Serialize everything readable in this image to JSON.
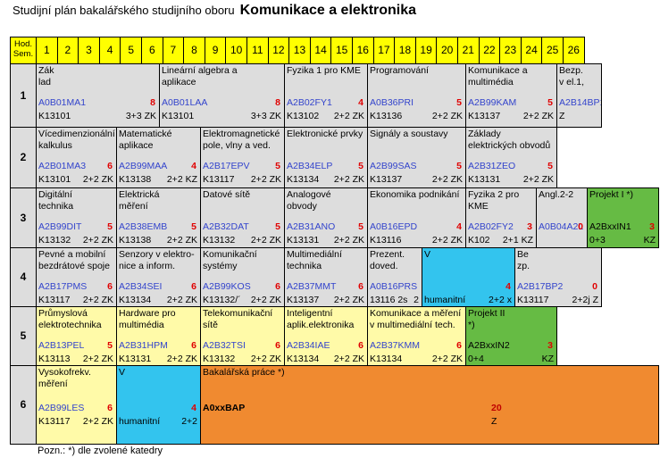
{
  "title": {
    "prefix": "Studijní plán bakalářského studijního oboru",
    "main": "Komunikace a elektronika"
  },
  "header": {
    "sem_label": "Hod.\nSem.",
    "columns": [
      "1",
      "2",
      "3",
      "4",
      "5",
      "6",
      "7",
      "8",
      "9",
      "10",
      "11",
      "12",
      "13",
      "14",
      "15",
      "16",
      "17",
      "18",
      "19",
      "20",
      "21",
      "22",
      "23",
      "24",
      "25",
      "26"
    ]
  },
  "semesters": [
    "1",
    "2",
    "3",
    "4",
    "5",
    "6"
  ],
  "courses": [
    {
      "name": "Zák\nlad",
      "code": "A0B01MA1",
      "credits": "8",
      "dept": "K13101",
      "hours": "3+3 ZK"
    },
    {
      "name": "Lineární algebra a\naplikace",
      "code": "A0B01LAA",
      "credits": "8",
      "dept": "K13101",
      "hours": "3+3 ZK"
    },
    {
      "name": "Fyzika 1 pro KME",
      "code": "A2B02FY1",
      "credits": "4",
      "dept": "K13102",
      "hours": "2+2 ZK"
    },
    {
      "name": "Programování",
      "code": "A0B36PRI",
      "credits": "5",
      "dept": "K13136",
      "hours": "2+2 ZK"
    },
    {
      "name": "Komunikace a\nmultimédia",
      "code": "A2B99KAM",
      "credits": "5",
      "dept": "K13137",
      "hours": "2+2 ZK"
    },
    {
      "name": "Bezp.\nv el.1,",
      "code": "A2B14BP1",
      "credits": "",
      "dept": "Z",
      "hours": ""
    },
    {
      "name": "Vícedimenzionální\nkalkulus",
      "code": "A2B01MA3",
      "credits": "6",
      "dept": "K13101",
      "hours": "2+2 ZK"
    },
    {
      "name": "Matematické\naplikace",
      "code": "A2B99MAA",
      "credits": "4",
      "dept": "K13138",
      "hours": "2+2 KZ"
    },
    {
      "name": "Elektromagnetické\npole, vlny a ved.",
      "code": "A2B17EPV",
      "credits": "5",
      "dept": "K13117",
      "hours": "2+2 ZK"
    },
    {
      "name": "Elektronické prvky",
      "code": "A2B34ELP",
      "credits": "5",
      "dept": "K13134",
      "hours": "2+2 ZK"
    },
    {
      "name": "Signály a soustavy",
      "code": "A2B99SAS",
      "credits": "5",
      "dept": "K13137",
      "hours": "2+2 ZK"
    },
    {
      "name": "Základy\nelektrických obvodů",
      "code": "A2B31ZEO",
      "credits": "5",
      "dept": "K13131",
      "hours": "2+2 ZK"
    },
    {
      "name": "Digitální\ntechnika",
      "code": "A2B99DIT",
      "credits": "5",
      "dept": "K13132",
      "hours": "2+2 ZK"
    },
    {
      "name": "Elektrická\nměření",
      "code": "A2B38EMB",
      "credits": "5",
      "dept": "K13138",
      "hours": "2+2 ZK"
    },
    {
      "name": "Datové sítě",
      "code": "A2B32DAT",
      "credits": "5",
      "dept": "K13132",
      "hours": "2+2 ZK"
    },
    {
      "name": "Analogové\nobvody",
      "code": "A2B31ANO",
      "credits": "5",
      "dept": "K13131",
      "hours": "2+2 ZK"
    },
    {
      "name": "Ekonomika podnikání",
      "code": "A0B16EPD",
      "credits": "4",
      "dept": "K13116",
      "hours": "2+2 ZK"
    },
    {
      "name": "Fyzika 2 pro\nKME",
      "code": "A2B02FY2",
      "credits": "3",
      "dept": "K102",
      "hours": "2+1 KZ"
    },
    {
      "name": "Angl.2-2",
      "code": "A0B04A2L",
      "credits": "0",
      "dept": "",
      "hours": ""
    },
    {
      "name": "Projekt I  *)",
      "code": "A2BxxIN1",
      "credits": "3",
      "dept": "0+3",
      "hours": "KZ"
    },
    {
      "name": "Pevné a mobilní\nbezdrátové spoje",
      "code": "A2B17PMS",
      "credits": "6",
      "dept": "K13117",
      "hours": "2+2 ZK"
    },
    {
      "name": "Senzory v elektro-\nnice a inform.",
      "code": "A2B34SEI",
      "credits": "6",
      "dept": "K13134",
      "hours": "2+2 ZK"
    },
    {
      "name": "Komunikační\nsystémy",
      "code": "A2B99KOS",
      "credits": "6",
      "dept": "K13132/´",
      "hours": "2+2 ZK"
    },
    {
      "name": "Multimediální\ntechnika",
      "code": "A2B37MMT",
      "credits": "6",
      "dept": "K13137",
      "hours": "2+2 ZK"
    },
    {
      "name": "Prezent.\ndoved.",
      "code": "A0B16PRS",
      "credits": "",
      "dept": "13116 2s",
      "hours": "2"
    },
    {
      "name": "V",
      "code": "",
      "credits": "4",
      "dept": "humanitní",
      "hours": "2+2      x"
    },
    {
      "name": "Be\nzp.",
      "code": "A2B17BP2",
      "credits": "0",
      "dept": "K13117",
      "hours": "2+2j   Z"
    },
    {
      "name": "Průmyslová\nelektrotechnika",
      "code": "A2B13PEL",
      "credits": "5",
      "dept": "K13113",
      "hours": "2+2 ZK"
    },
    {
      "name": "Hardware pro\nmultimédia",
      "code": "A2B31HPM",
      "credits": "6",
      "dept": "K13131",
      "hours": "2+2 ZK"
    },
    {
      "name": "Telekomunikační\nsítě",
      "code": "A2B32TSI",
      "credits": "6",
      "dept": "K13132",
      "hours": "2+2 ZK"
    },
    {
      "name": "Inteligentní\naplik.elektronika",
      "code": "A2B34IAE",
      "credits": "6",
      "dept": "K13134",
      "hours": "2+2 ZK"
    },
    {
      "name": "Komunikace a měření\nv multimediální tech.",
      "code": "A2B37KMM",
      "credits": "6",
      "dept": "K13134",
      "hours": "2+2 ZK"
    },
    {
      "name": "Projekt II\n*)",
      "code": "A2BxxIN2",
      "credits": "3",
      "dept": "0+4",
      "hours": "KZ"
    },
    {
      "name": "Vysokofrekv.\nměření",
      "code": "A2B99LES",
      "credits": "6",
      "dept": "K13117",
      "hours": "2+2 ZK"
    },
    {
      "name": "V",
      "code": "",
      "credits": "4",
      "dept": "humanitní",
      "hours": "2+2"
    },
    {
      "name": "Bakalářská práce  *)",
      "code": "A0xxBAP",
      "credits": "20",
      "dept": "Z",
      "hours": ""
    }
  ],
  "footnote": "Pozn.: *) dle zvolené katedry",
  "colors": {
    "header": "#ffff00",
    "grey": "#dddddd",
    "light_yellow": "#fffaa8",
    "green": "#66bb44",
    "cyan": "#33c4ee",
    "orange": "#f08a30",
    "code_blue": "#3344cc",
    "credit_red": "#e00000"
  }
}
